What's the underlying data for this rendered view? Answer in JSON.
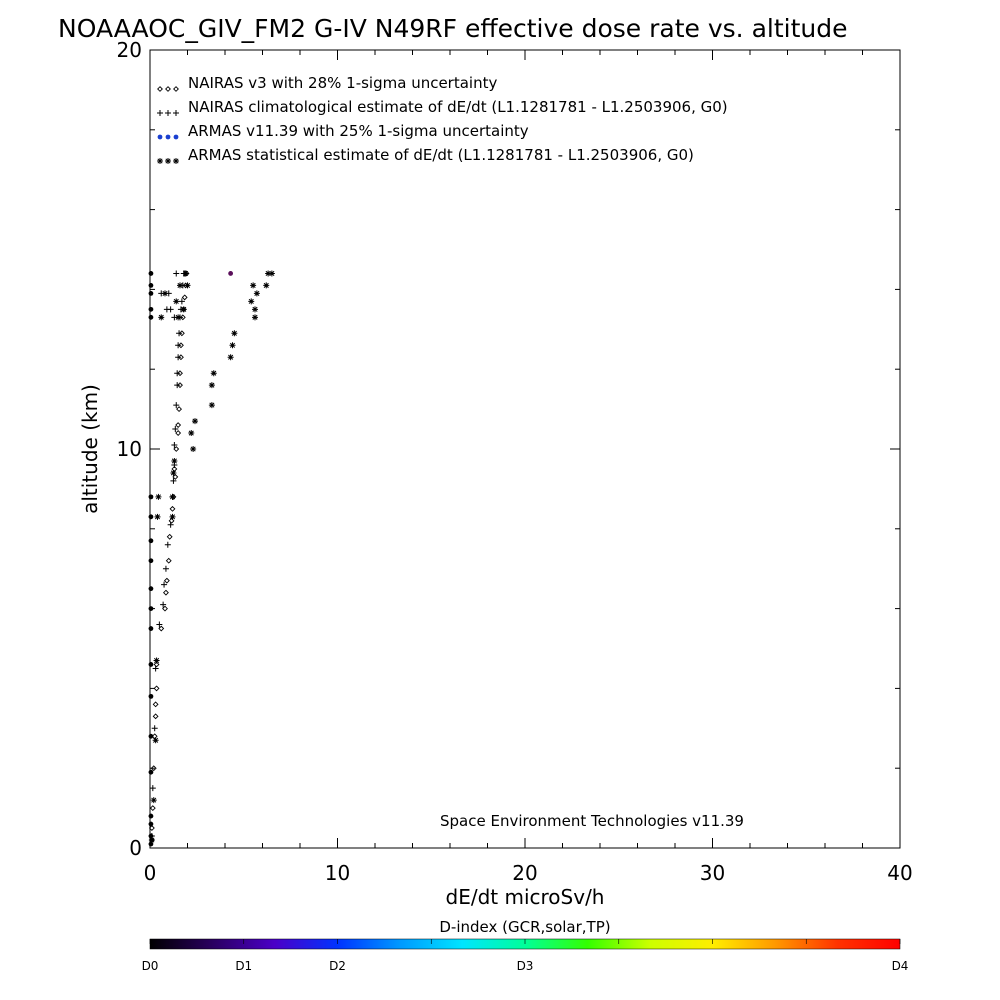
{
  "chart_data": {
    "type": "scatter",
    "title": "NOAAAOC_GIV_FM2 G-IV   N49RF  effective dose rate vs. altitude",
    "xlabel": "dE/dt microSv/h",
    "ylabel": "altitude (km)",
    "xlim": [
      0,
      40
    ],
    "ylim": [
      0,
      20
    ],
    "x_major_ticks": [
      0,
      10,
      20,
      30,
      40
    ],
    "y_major_ticks": [
      0,
      10,
      20
    ],
    "grid": false,
    "legend_position": "top-left",
    "legend": [
      {
        "marker": "diamond",
        "label": "NAIRAS v3 with 28% 1-sigma uncertainty"
      },
      {
        "marker": "plus",
        "label": "NAIRAS climatological estimate of dE/dt (L1.1281781 - L1.2503906, G0)"
      },
      {
        "marker": "dot",
        "label": "ARMAS v11.39 with 25% 1-sigma uncertainty",
        "color": "#1a3fd0"
      },
      {
        "marker": "asterisk",
        "label": "ARMAS statistical estimate of dE/dt (L1.1281781 - L1.2503906, G0)"
      }
    ],
    "annotation": "Space Environment Technologies v11.39",
    "series": [
      {
        "key": "nairas_v3",
        "marker": "diamond",
        "points": [
          [
            0.1,
            0.2
          ],
          [
            0.1,
            0.5
          ],
          [
            0.15,
            1.0
          ],
          [
            0.2,
            2.0
          ],
          [
            0.25,
            2.8
          ],
          [
            0.3,
            3.3
          ],
          [
            0.3,
            3.6
          ],
          [
            0.35,
            4.0
          ],
          [
            0.35,
            4.6
          ],
          [
            0.6,
            5.5
          ],
          [
            0.8,
            6.0
          ],
          [
            0.85,
            6.4
          ],
          [
            0.9,
            6.7
          ],
          [
            1.0,
            7.2
          ],
          [
            1.05,
            7.8
          ],
          [
            1.15,
            8.2
          ],
          [
            1.2,
            8.5
          ],
          [
            1.25,
            8.8
          ],
          [
            1.35,
            9.3
          ],
          [
            1.3,
            9.5
          ],
          [
            1.4,
            10.0
          ],
          [
            1.5,
            10.4
          ],
          [
            1.5,
            10.6
          ],
          [
            1.55,
            11.0
          ],
          [
            1.6,
            11.6
          ],
          [
            1.6,
            11.9
          ],
          [
            1.65,
            12.3
          ],
          [
            1.65,
            12.6
          ],
          [
            1.7,
            12.9
          ],
          [
            1.75,
            13.3
          ],
          [
            1.8,
            13.5
          ],
          [
            1.85,
            13.8
          ],
          [
            1.9,
            14.1
          ],
          [
            1.95,
            14.4
          ]
        ]
      },
      {
        "key": "nairas_clim",
        "marker": "plus",
        "points": [
          [
            0.1,
            0.3
          ],
          [
            0.15,
            1.5
          ],
          [
            0.25,
            3.0
          ],
          [
            0.3,
            4.5
          ],
          [
            0.5,
            5.6
          ],
          [
            0.7,
            6.1
          ],
          [
            0.75,
            6.6
          ],
          [
            0.85,
            7.0
          ],
          [
            0.95,
            7.6
          ],
          [
            1.1,
            8.1
          ],
          [
            1.2,
            8.8
          ],
          [
            1.25,
            9.2
          ],
          [
            1.3,
            9.6
          ],
          [
            1.3,
            10.1
          ],
          [
            1.35,
            10.5
          ],
          [
            1.4,
            11.1
          ],
          [
            1.45,
            11.6
          ],
          [
            1.45,
            11.9
          ],
          [
            1.5,
            12.3
          ],
          [
            1.5,
            12.6
          ],
          [
            1.55,
            12.9
          ],
          [
            1.6,
            13.3
          ],
          [
            1.65,
            13.5
          ],
          [
            1.7,
            13.7
          ],
          [
            1.75,
            14.1
          ],
          [
            1.8,
            14.4
          ],
          [
            1.85,
            14.4
          ],
          [
            0.9,
            13.5
          ],
          [
            1.0,
            13.9
          ],
          [
            0.6,
            13.9
          ],
          [
            1.3,
            13.3
          ],
          [
            1.1,
            13.5
          ],
          [
            1.4,
            14.4
          ]
        ]
      },
      {
        "key": "armas",
        "marker": "dot",
        "points": [
          [
            0.05,
            0.1
          ],
          [
            0.05,
            0.3
          ],
          [
            0.05,
            0.6
          ],
          [
            0.05,
            0.8
          ],
          [
            0.05,
            1.9
          ],
          [
            0.05,
            2.8
          ],
          [
            0.05,
            3.8
          ],
          [
            0.05,
            4.6
          ],
          [
            0.05,
            5.5
          ],
          [
            0.05,
            6.0
          ],
          [
            0.05,
            6.5
          ],
          [
            0.05,
            7.2
          ],
          [
            0.05,
            7.7
          ],
          [
            0.05,
            8.3
          ],
          [
            0.05,
            8.8
          ],
          [
            0.05,
            13.3
          ],
          [
            0.05,
            13.5
          ],
          [
            0.05,
            13.9
          ],
          [
            0.05,
            14.1
          ],
          [
            0.05,
            14.4
          ],
          [
            4.3,
            14.4
          ]
        ]
      },
      {
        "key": "armas_stat",
        "marker": "asterisk",
        "points": [
          [
            0.1,
            0.2
          ],
          [
            0.2,
            1.2
          ],
          [
            0.3,
            2.7
          ],
          [
            0.35,
            4.7
          ],
          [
            0.4,
            8.3
          ],
          [
            0.45,
            8.8
          ],
          [
            1.2,
            8.3
          ],
          [
            1.2,
            8.8
          ],
          [
            1.25,
            9.4
          ],
          [
            1.3,
            9.7
          ],
          [
            2.3,
            10.0
          ],
          [
            2.2,
            10.4
          ],
          [
            2.4,
            10.7
          ],
          [
            3.3,
            11.1
          ],
          [
            3.3,
            11.6
          ],
          [
            3.4,
            11.9
          ],
          [
            4.3,
            12.3
          ],
          [
            4.4,
            12.6
          ],
          [
            4.5,
            12.9
          ],
          [
            5.6,
            13.3
          ],
          [
            5.6,
            13.5
          ],
          [
            5.4,
            13.7
          ],
          [
            5.5,
            14.1
          ],
          [
            5.7,
            13.9
          ],
          [
            6.2,
            14.1
          ],
          [
            6.3,
            14.4
          ],
          [
            6.5,
            14.4
          ],
          [
            0.6,
            13.3
          ],
          [
            1.5,
            13.3
          ],
          [
            1.8,
            13.5
          ],
          [
            0.8,
            13.9
          ],
          [
            1.6,
            14.1
          ],
          [
            1.9,
            14.4
          ],
          [
            2.0,
            14.1
          ],
          [
            1.4,
            13.7
          ]
        ]
      }
    ],
    "colorbar": {
      "label": "D-index (GCR,solar,TP)",
      "tick_labels": [
        "D0",
        "D1",
        "D2",
        "D3",
        "D4"
      ],
      "tick_values": [
        0,
        0.125,
        0.25,
        0.5,
        1.0
      ],
      "colors": [
        "#000000",
        "#2a0060",
        "#4b00c8",
        "#0033ff",
        "#0099ff",
        "#00e5ff",
        "#00ff99",
        "#33ff00",
        "#ccff00",
        "#ffee00",
        "#ff9900",
        "#ff3300",
        "#ff0000"
      ]
    }
  }
}
